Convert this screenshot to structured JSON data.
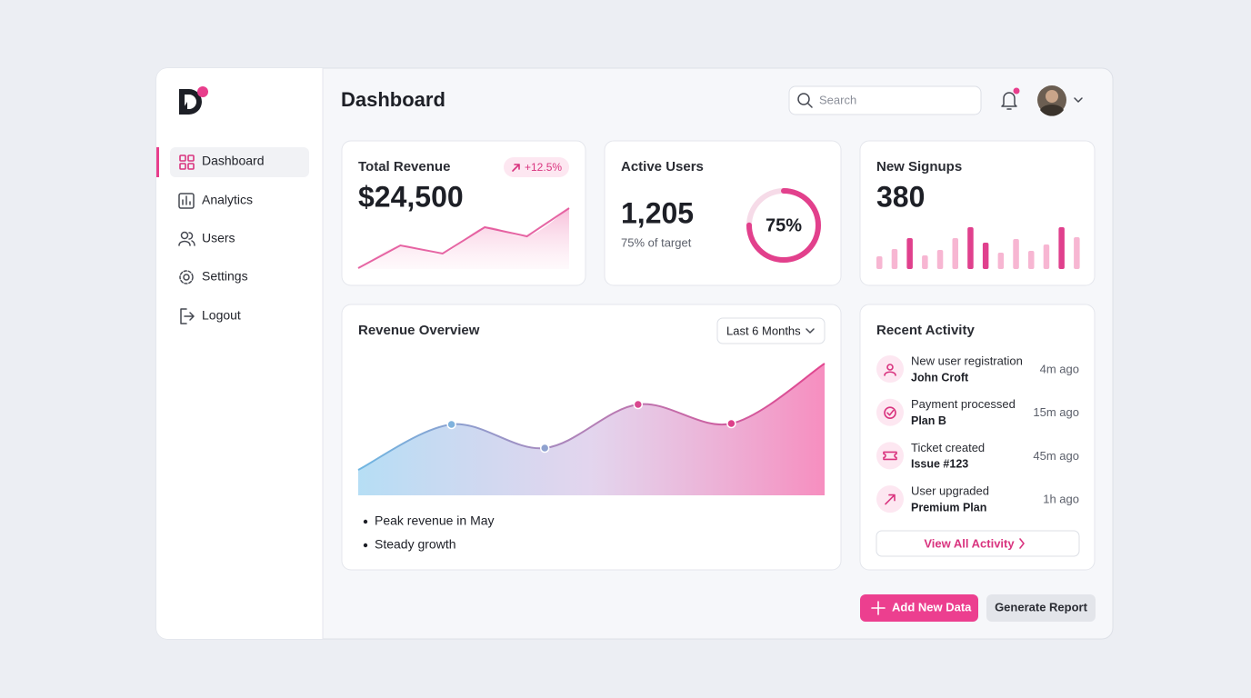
{
  "sidebar": {
    "items": [
      "Dashboard",
      "Analytics",
      "Users",
      "Settings",
      "Logout"
    ],
    "active": 0
  },
  "header": {
    "title": "Dashboard",
    "search_placeholder": "Search"
  },
  "cards": {
    "revenue": {
      "title": "Total Revenue",
      "value": "$24,500",
      "change": "+12.5%",
      "sparkline": [
        5,
        30,
        21,
        50,
        40,
        71
      ]
    },
    "users": {
      "title": "Active Users",
      "value": "1,205",
      "subtitle": "75% of target",
      "progress": {
        "value": 75,
        "label": "75%"
      }
    },
    "signups": {
      "title": "New Signups",
      "value": "380",
      "bars": [
        14,
        22,
        34,
        15,
        21,
        34,
        46,
        29,
        18,
        33,
        20,
        27,
        46,
        35
      ],
      "colors": [
        "#f7b6d2",
        "#f7b6d2",
        "#e0408d",
        "#f7b6d2",
        "#f7b6d2",
        "#f7b6d2",
        "#e0408d",
        "#e0408d",
        "#f7b6d2",
        "#f7b6d2",
        "#f7b6d2",
        "#f7b6d2",
        "#e0408d",
        "#f7b6d2"
      ]
    }
  },
  "overview": {
    "title": "Revenue Overview",
    "range": "Last 6 Months",
    "values": [
      28,
      78,
      52,
      100,
      79,
      145
    ],
    "notes": [
      "Peak revenue in May",
      "Steady growth"
    ]
  },
  "activity": {
    "title": "Recent Activity",
    "items": [
      {
        "event": "New user registration",
        "detail": "John Croft",
        "time": "4m ago"
      },
      {
        "event": "Payment processed",
        "detail": "Plan B",
        "time": "15m ago"
      },
      {
        "event": "Ticket created",
        "detail": "Issue #123",
        "time": "45m ago"
      },
      {
        "event": "User upgraded",
        "detail": "Premium Plan",
        "time": "1h ago"
      }
    ],
    "link": "View All Activity"
  },
  "actions": [
    "Add New Data",
    "Generate Report"
  ]
}
